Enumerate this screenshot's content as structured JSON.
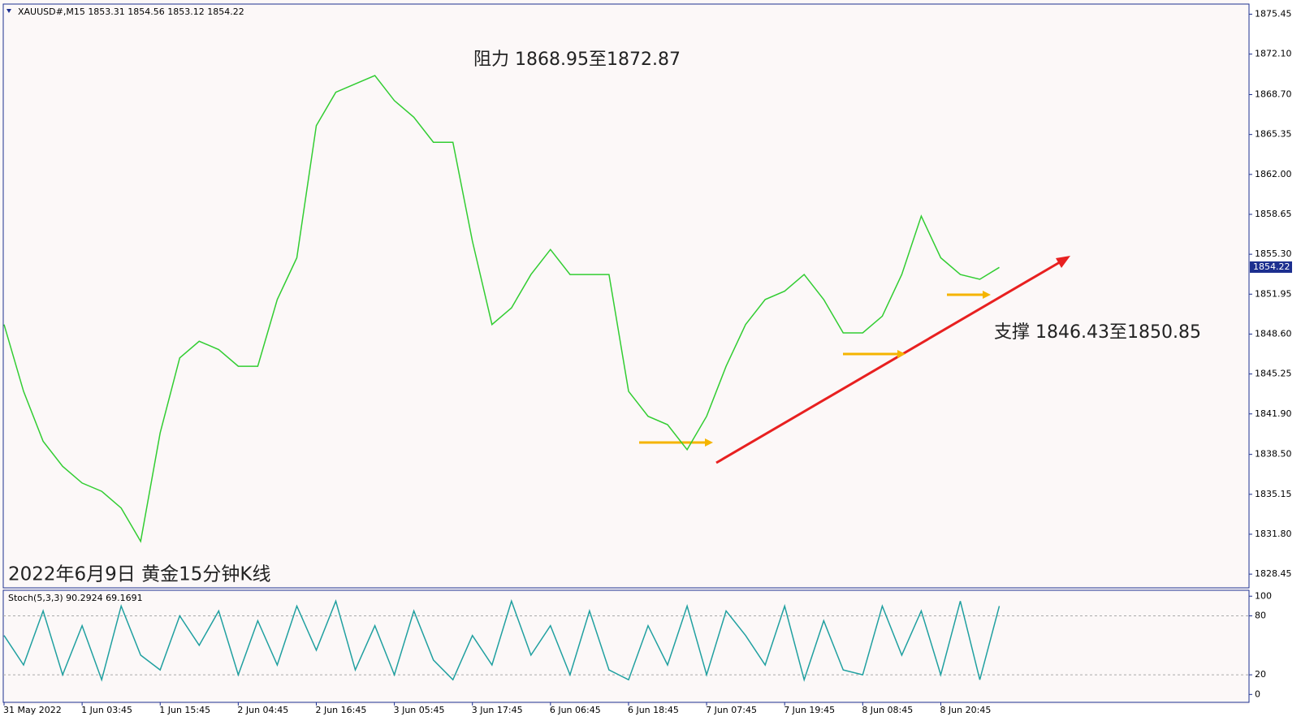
{
  "chart_data": [
    {
      "type": "line",
      "title": "XAUUSD#,M15  1853.31 1854.56 1853.12 1854.22",
      "annotations": [
        "阻力 1868.95至1872.87",
        "支撑 1846.43至1850.85",
        "2022年6月9日 黄金15分钟K线"
      ],
      "categories": [
        "31 May 2022",
        null,
        null,
        null,
        "1 Jun 03:45",
        null,
        null,
        null,
        "1 Jun 15:45",
        null,
        null,
        null,
        "2 Jun 04:45",
        null,
        null,
        null,
        "2 Jun 16:45",
        null,
        null,
        null,
        "3 Jun 05:45",
        null,
        null,
        null,
        "3 Jun 17:45",
        null,
        null,
        null,
        "6 Jun 06:45",
        null,
        null,
        null,
        "6 Jun 18:45",
        null,
        null,
        null,
        "7 Jun 07:45",
        null,
        null,
        null,
        "7 Jun 19:45",
        null,
        null,
        null,
        "8 Jun 08:45",
        null,
        null,
        null,
        "8 Jun 20:45",
        null,
        null,
        null
      ],
      "series": [
        {
          "color": "#32cd32",
          "values": [
            1849.4,
            1843.8,
            1839.6,
            1837.5,
            1836.1,
            1835.4,
            1834.0,
            1831.2,
            1840.3,
            1846.6,
            1848.0,
            1847.3,
            1845.9,
            1845.9,
            1851.5,
            1855.0,
            1866.1,
            1868.9,
            1869.6,
            1870.3,
            1868.2,
            1866.8,
            1864.7,
            1864.7,
            1856.4,
            1849.4,
            1850.8,
            1853.6,
            1855.7,
            1853.6,
            1853.6,
            1853.6,
            1843.8,
            1841.7,
            1841.0,
            1838.9,
            1841.7,
            1845.9,
            1849.4,
            1851.5,
            1852.2,
            1853.6,
            1851.5,
            1848.7,
            1848.7,
            1850.1,
            1853.6,
            1858.5,
            1855.0,
            1853.6,
            1853.2,
            1854.2
          ]
        }
      ],
      "last_price": 1854.22,
      "ylim": [
        1827.3,
        1876.3
      ],
      "yticks": [
        1875.45,
        {
          "value": 1872.1,
          "label": "1872.10"
        },
        {
          "value": 1868.7,
          "label": "1868.70"
        },
        1865.35,
        {
          "value": 1862.0,
          "label": "1862.00"
        },
        1858.65,
        {
          "value": 1855.3,
          "label": "1855.30"
        },
        1851.95,
        {
          "value": 1848.6,
          "label": "1848.60"
        },
        1845.25,
        {
          "value": 1841.9,
          "label": "1841.90"
        },
        {
          "value": 1838.5,
          "label": "1838.50"
        },
        1835.15,
        {
          "value": 1831.8,
          "label": "1831.80"
        },
        1828.45
      ]
    },
    {
      "type": "line",
      "title": "Stoch(5,3,3) 90.2924 69.1691",
      "series": [
        {
          "color": "#20a0a0",
          "values": [
            60,
            30,
            85,
            20,
            70,
            15,
            90,
            40,
            25,
            80,
            50,
            85,
            20,
            75,
            30,
            90,
            45,
            95,
            25,
            70,
            20,
            85,
            35,
            15,
            60,
            30,
            95,
            40,
            70,
            20,
            85,
            25,
            15,
            70,
            30,
            90,
            20,
            85,
            60,
            30,
            90,
            15,
            75,
            25,
            20,
            90,
            40,
            85,
            20,
            95,
            15,
            90
          ]
        }
      ],
      "ylim": [
        -8,
        106
      ],
      "yticks": [
        100,
        80,
        20,
        0
      ],
      "levels": [
        80,
        20
      ]
    }
  ]
}
